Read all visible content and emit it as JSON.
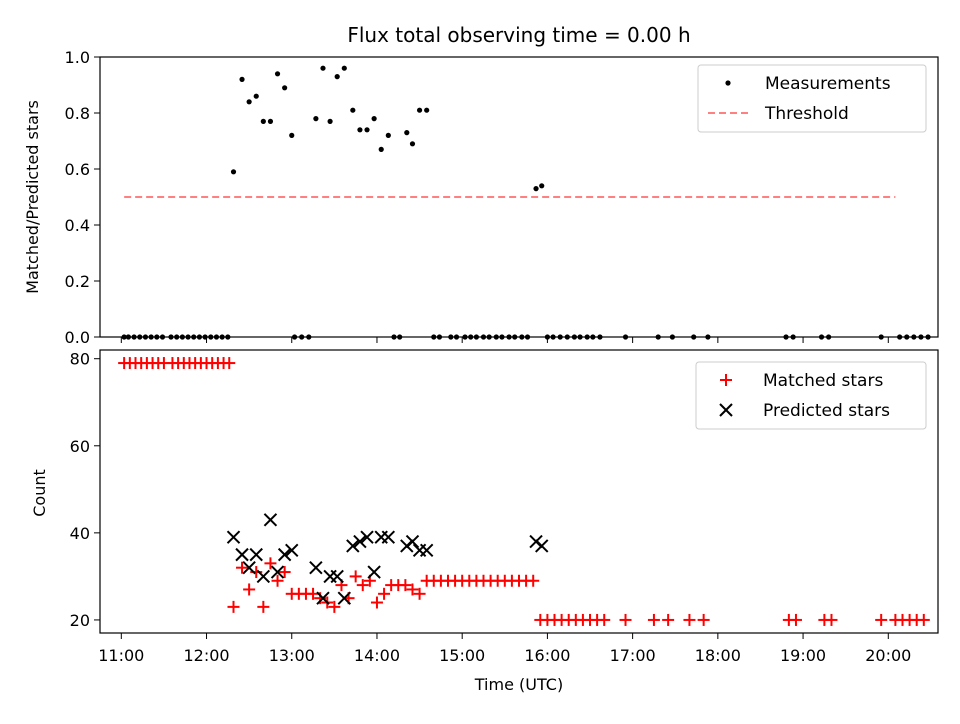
{
  "figure": {
    "title": "Flux total observing time = 0.00 h",
    "xlabel": "Time (UTC)",
    "x_tick_labels": [
      "11:00",
      "12:00",
      "13:00",
      "14:00",
      "15:00",
      "16:00",
      "17:00",
      "18:00",
      "19:00",
      "20:00"
    ]
  },
  "chart_data": [
    {
      "type": "scatter",
      "panel": "top",
      "title": "Flux total observing time = 0.00 h",
      "xlabel": "",
      "ylabel": "Matched/Predicted stars",
      "xlim": [
        "10:45",
        "20:35"
      ],
      "ylim": [
        0,
        1.0
      ],
      "y_ticks": [
        0.0,
        0.2,
        0.4,
        0.6,
        0.8,
        1.0
      ],
      "y_tick_labels": [
        "0.0",
        "0.2",
        "0.4",
        "0.6",
        "0.8",
        "1.0"
      ],
      "grid": false,
      "legend_position": "top-right",
      "colors": {
        "measurements": "#000000",
        "threshold": "#ff8080"
      },
      "threshold": {
        "name": "Threshold",
        "y": 0.5,
        "x": [
          "11:02",
          "20:05"
        ]
      },
      "series": [
        {
          "name": "Measurements",
          "points": [
            [
              "11:02",
              0
            ],
            [
              "11:05",
              0
            ],
            [
              "11:09",
              0
            ],
            [
              "11:13",
              0
            ],
            [
              "11:17",
              0
            ],
            [
              "11:21",
              0
            ],
            [
              "11:25",
              0
            ],
            [
              "11:29",
              0
            ],
            [
              "11:35",
              0
            ],
            [
              "11:39",
              0
            ],
            [
              "11:43",
              0
            ],
            [
              "11:47",
              0
            ],
            [
              "11:51",
              0
            ],
            [
              "11:55",
              0
            ],
            [
              "11:59",
              0
            ],
            [
              "12:03",
              0
            ],
            [
              "12:07",
              0
            ],
            [
              "12:11",
              0
            ],
            [
              "12:15",
              0
            ],
            [
              "12:19",
              0.59
            ],
            [
              "12:25",
              0.92
            ],
            [
              "12:30",
              0.84
            ],
            [
              "12:35",
              0.86
            ],
            [
              "12:40",
              0.77
            ],
            [
              "12:45",
              0.77
            ],
            [
              "12:50",
              0.94
            ],
            [
              "12:55",
              0.89
            ],
            [
              "13:00",
              0.72
            ],
            [
              "13:02",
              0
            ],
            [
              "13:07",
              0
            ],
            [
              "13:12",
              0
            ],
            [
              "13:17",
              0.78
            ],
            [
              "13:22",
              0.96
            ],
            [
              "13:27",
              0.77
            ],
            [
              "13:32",
              0.93
            ],
            [
              "13:37",
              0.96
            ],
            [
              "13:43",
              0.81
            ],
            [
              "13:48",
              0.74
            ],
            [
              "13:53",
              0.74
            ],
            [
              "13:58",
              0.78
            ],
            [
              "14:03",
              0.67
            ],
            [
              "14:08",
              0.72
            ],
            [
              "14:12",
              0
            ],
            [
              "14:16",
              0
            ],
            [
              "14:21",
              0.73
            ],
            [
              "14:25",
              0.69
            ],
            [
              "14:30",
              0.81
            ],
            [
              "14:35",
              0.81
            ],
            [
              "14:40",
              0
            ],
            [
              "14:44",
              0
            ],
            [
              "14:52",
              0
            ],
            [
              "14:56",
              0
            ],
            [
              "15:02",
              0
            ],
            [
              "15:06",
              0
            ],
            [
              "15:10",
              0
            ],
            [
              "15:15",
              0
            ],
            [
              "15:19",
              0
            ],
            [
              "15:24",
              0
            ],
            [
              "15:28",
              0
            ],
            [
              "15:33",
              0
            ],
            [
              "15:37",
              0
            ],
            [
              "15:42",
              0
            ],
            [
              "15:46",
              0
            ],
            [
              "15:52",
              0.53
            ],
            [
              "15:56",
              0.54
            ],
            [
              "16:00",
              0
            ],
            [
              "16:04",
              0
            ],
            [
              "16:09",
              0
            ],
            [
              "16:14",
              0
            ],
            [
              "16:19",
              0
            ],
            [
              "16:23",
              0
            ],
            [
              "16:28",
              0
            ],
            [
              "16:32",
              0
            ],
            [
              "16:37",
              0
            ],
            [
              "16:55",
              0
            ],
            [
              "17:18",
              0
            ],
            [
              "17:28",
              0
            ],
            [
              "17:43",
              0
            ],
            [
              "17:53",
              0
            ],
            [
              "18:48",
              0
            ],
            [
              "18:53",
              0
            ],
            [
              "19:13",
              0
            ],
            [
              "19:18",
              0
            ],
            [
              "19:55",
              0
            ],
            [
              "20:08",
              0
            ],
            [
              "20:13",
              0
            ],
            [
              "20:18",
              0
            ],
            [
              "20:23",
              0
            ],
            [
              "20:28",
              0
            ]
          ]
        }
      ]
    },
    {
      "type": "scatter",
      "panel": "bottom",
      "title": "",
      "xlabel": "Time (UTC)",
      "ylabel": "Count",
      "xlim": [
        "10:45",
        "20:35"
      ],
      "ylim": [
        17,
        82
      ],
      "y_ticks": [
        20,
        40,
        60,
        80
      ],
      "y_tick_labels": [
        "20",
        "40",
        "60",
        "80"
      ],
      "grid": false,
      "legend_position": "top-right",
      "colors": {
        "matched": "#ff0000",
        "predicted": "#000000"
      },
      "series": [
        {
          "name": "Matched stars",
          "marker": "plus",
          "points": [
            [
              "11:02",
              79
            ],
            [
              "11:06",
              79
            ],
            [
              "11:10",
              79
            ],
            [
              "11:14",
              79
            ],
            [
              "11:18",
              79
            ],
            [
              "11:22",
              79
            ],
            [
              "11:26",
              79
            ],
            [
              "11:30",
              79
            ],
            [
              "11:36",
              79
            ],
            [
              "11:40",
              79
            ],
            [
              "11:44",
              79
            ],
            [
              "11:48",
              79
            ],
            [
              "11:52",
              79
            ],
            [
              "11:56",
              79
            ],
            [
              "12:00",
              79
            ],
            [
              "12:04",
              79
            ],
            [
              "12:08",
              79
            ],
            [
              "12:12",
              79
            ],
            [
              "12:16",
              79
            ],
            [
              "12:19",
              23
            ],
            [
              "12:25",
              32
            ],
            [
              "12:30",
              27
            ],
            [
              "12:35",
              31
            ],
            [
              "12:40",
              23
            ],
            [
              "12:45",
              33
            ],
            [
              "12:50",
              29
            ],
            [
              "12:55",
              31
            ],
            [
              "13:00",
              26
            ],
            [
              "13:05",
              26
            ],
            [
              "13:10",
              26
            ],
            [
              "13:15",
              26
            ],
            [
              "13:20",
              25
            ],
            [
              "13:25",
              24
            ],
            [
              "13:30",
              23
            ],
            [
              "13:35",
              28
            ],
            [
              "13:40",
              25
            ],
            [
              "13:45",
              30
            ],
            [
              "13:50",
              28
            ],
            [
              "13:55",
              29
            ],
            [
              "14:00",
              24
            ],
            [
              "14:05",
              26
            ],
            [
              "14:10",
              28
            ],
            [
              "14:15",
              28
            ],
            [
              "14:20",
              28
            ],
            [
              "14:25",
              27
            ],
            [
              "14:30",
              26
            ],
            [
              "14:35",
              29
            ],
            [
              "14:40",
              29
            ],
            [
              "14:45",
              29
            ],
            [
              "14:50",
              29
            ],
            [
              "14:55",
              29
            ],
            [
              "15:00",
              29
            ],
            [
              "15:05",
              29
            ],
            [
              "15:10",
              29
            ],
            [
              "15:15",
              29
            ],
            [
              "15:20",
              29
            ],
            [
              "15:25",
              29
            ],
            [
              "15:30",
              29
            ],
            [
              "15:35",
              29
            ],
            [
              "15:40",
              29
            ],
            [
              "15:45",
              29
            ],
            [
              "15:50",
              29
            ],
            [
              "15:55",
              20
            ],
            [
              "16:00",
              20
            ],
            [
              "16:05",
              20
            ],
            [
              "16:10",
              20
            ],
            [
              "16:15",
              20
            ],
            [
              "16:20",
              20
            ],
            [
              "16:25",
              20
            ],
            [
              "16:30",
              20
            ],
            [
              "16:35",
              20
            ],
            [
              "16:40",
              20
            ],
            [
              "16:55",
              20
            ],
            [
              "17:15",
              20
            ],
            [
              "17:25",
              20
            ],
            [
              "17:40",
              20
            ],
            [
              "17:50",
              20
            ],
            [
              "18:50",
              20
            ],
            [
              "18:55",
              20
            ],
            [
              "19:15",
              20
            ],
            [
              "19:20",
              20
            ],
            [
              "19:55",
              20
            ],
            [
              "20:05",
              20
            ],
            [
              "20:10",
              20
            ],
            [
              "20:15",
              20
            ],
            [
              "20:20",
              20
            ],
            [
              "20:25",
              20
            ]
          ]
        },
        {
          "name": "Predicted stars",
          "marker": "x",
          "points": [
            [
              "12:19",
              39
            ],
            [
              "12:25",
              35
            ],
            [
              "12:30",
              32
            ],
            [
              "12:35",
              35
            ],
            [
              "12:40",
              30
            ],
            [
              "12:45",
              43
            ],
            [
              "12:50",
              31
            ],
            [
              "12:55",
              35
            ],
            [
              "13:00",
              36
            ],
            [
              "13:17",
              32
            ],
            [
              "13:22",
              25
            ],
            [
              "13:27",
              30
            ],
            [
              "13:32",
              30
            ],
            [
              "13:37",
              25
            ],
            [
              "13:43",
              37
            ],
            [
              "13:48",
              38
            ],
            [
              "13:53",
              39
            ],
            [
              "13:58",
              31
            ],
            [
              "14:03",
              39
            ],
            [
              "14:08",
              39
            ],
            [
              "14:21",
              37
            ],
            [
              "14:25",
              38
            ],
            [
              "14:30",
              36
            ],
            [
              "14:35",
              36
            ],
            [
              "15:52",
              38
            ],
            [
              "15:56",
              37
            ]
          ]
        }
      ]
    }
  ]
}
